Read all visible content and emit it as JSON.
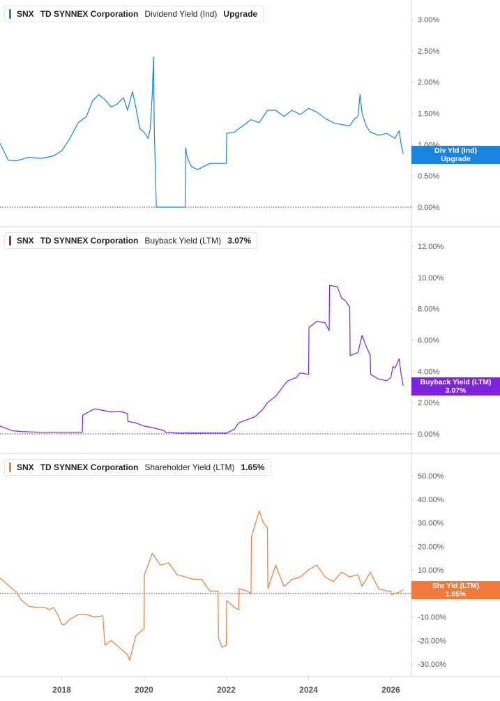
{
  "colors": {
    "dividend": "#1a83e0",
    "buyback": "#7d22e0",
    "shareholder": "#ef7a3c",
    "grid_border": "#d6d6d6",
    "axis_text": "#555555"
  },
  "panels": [
    {
      "ticker": "SNX",
      "company": "TD SYNNEX Corporation",
      "metric": "Dividend Yield (Ind)",
      "value": "Upgrade",
      "tag": {
        "line1": "Div Yld (Ind)",
        "line2": "Upgrade"
      }
    },
    {
      "ticker": "SNX",
      "company": "TD SYNNEX Corporation",
      "metric": "Buyback Yield (LTM)",
      "value": "3.07%",
      "tag": {
        "line1": "Buyback Yield (LTM)",
        "line2": "3.07%"
      }
    },
    {
      "ticker": "SNX",
      "company": "TD SYNNEX Corporation",
      "metric": "Shareholder Yield (LTM)",
      "value": "1.65%",
      "tag": {
        "line1": "Shr Yld (LTM)",
        "line2": "1.65%"
      }
    }
  ],
  "chart_data": [
    {
      "type": "line",
      "series": [
        {
          "name": "Dividend Yield (Ind)",
          "color": "#1a83e0",
          "x": [
            2016.5,
            2016.7,
            2016.9,
            2017.2,
            2017.5,
            2017.8,
            2018.0,
            2018.2,
            2018.4,
            2018.6,
            2018.75,
            2018.9,
            2019.05,
            2019.2,
            2019.35,
            2019.5,
            2019.6,
            2019.72,
            2019.8,
            2019.9,
            2020.0,
            2020.1,
            2020.15,
            2020.2,
            2020.23,
            2020.25,
            2020.3,
            2020.8,
            2021.0,
            2021.01,
            2021.05,
            2021.15,
            2021.3,
            2021.6,
            2022.0,
            2022.01,
            2022.2,
            2022.4,
            2022.6,
            2022.8,
            2023.0,
            2023.2,
            2023.4,
            2023.6,
            2023.8,
            2024.0,
            2024.2,
            2024.4,
            2024.6,
            2024.8,
            2025.0,
            2025.1,
            2025.2,
            2025.25,
            2025.3,
            2025.4,
            2025.5,
            2025.7,
            2025.9,
            2026.1,
            2026.2,
            2026.25,
            2026.3
          ],
          "y": [
            1.02,
            0.75,
            0.74,
            0.8,
            0.78,
            0.82,
            0.9,
            1.1,
            1.35,
            1.45,
            1.7,
            1.8,
            1.72,
            1.6,
            1.65,
            1.75,
            1.55,
            1.85,
            1.6,
            1.25,
            1.2,
            1.1,
            1.25,
            1.8,
            2.4,
            1.2,
            0.0,
            0.0,
            0.0,
            0.95,
            0.8,
            0.65,
            0.6,
            0.7,
            0.7,
            1.18,
            1.2,
            1.3,
            1.4,
            1.35,
            1.55,
            1.55,
            1.45,
            1.55,
            1.48,
            1.58,
            1.52,
            1.42,
            1.35,
            1.32,
            1.3,
            1.4,
            1.45,
            1.8,
            1.5,
            1.3,
            1.2,
            1.15,
            1.18,
            1.1,
            1.22,
            1.0,
            0.85
          ]
        }
      ],
      "ylim": [
        0,
        3
      ],
      "yticks": [
        "0.00%",
        "0.50%",
        "1.00%",
        "1.50%",
        "2.00%",
        "2.50%",
        "3.00%"
      ],
      "xlabel": "",
      "ylabel": ""
    },
    {
      "type": "line",
      "series": [
        {
          "name": "Buyback Yield (LTM)",
          "color": "#7d22e0",
          "x": [
            2016.5,
            2016.8,
            2017.0,
            2017.5,
            2018.0,
            2018.5,
            2018.51,
            2018.8,
            2019.0,
            2019.2,
            2019.4,
            2019.6,
            2019.61,
            2019.8,
            2020.0,
            2020.2,
            2020.5,
            2020.51,
            2020.8,
            2021.0,
            2021.5,
            2022.0,
            2022.2,
            2022.3,
            2022.5,
            2022.7,
            2022.9,
            2023.0,
            2023.2,
            2023.4,
            2023.5,
            2023.7,
            2023.8,
            2024.0,
            2024.01,
            2024.2,
            2024.4,
            2024.5,
            2024.51,
            2024.7,
            2024.8,
            2024.9,
            2025.0,
            2025.01,
            2025.2,
            2025.3,
            2025.4,
            2025.5,
            2025.51,
            2025.7,
            2025.9,
            2026.0,
            2026.05,
            2026.1,
            2026.2,
            2026.25,
            2026.3
          ],
          "y": [
            0.5,
            0.2,
            0.15,
            0.1,
            0.1,
            0.1,
            1.2,
            1.6,
            1.5,
            1.4,
            1.45,
            1.3,
            0.8,
            0.7,
            0.5,
            0.4,
            0.2,
            0.1,
            0.05,
            0.05,
            0.05,
            0.05,
            0.3,
            0.7,
            0.9,
            1.1,
            1.6,
            2.0,
            2.4,
            3.1,
            3.4,
            3.6,
            3.9,
            3.8,
            6.8,
            7.2,
            7.1,
            6.6,
            9.5,
            9.4,
            8.7,
            8.5,
            8.1,
            5.0,
            5.2,
            6.3,
            5.6,
            5.0,
            3.8,
            3.5,
            3.4,
            3.6,
            4.3,
            4.2,
            4.8,
            3.8,
            3.07
          ]
        }
      ],
      "ylim": [
        0,
        12
      ],
      "yticks": [
        "0.00%",
        "2.00%",
        "4.00%",
        "6.00%",
        "8.00%",
        "10.00%",
        "12.00%"
      ],
      "xlabel": "",
      "ylabel": ""
    },
    {
      "type": "line",
      "series": [
        {
          "name": "Shareholder Yield (LTM)",
          "color": "#ef7a3c",
          "x": [
            2016.5,
            2016.7,
            2016.9,
            2017.0,
            2017.2,
            2017.4,
            2017.6,
            2017.7,
            2017.8,
            2017.9,
            2018.0,
            2018.05,
            2018.2,
            2018.4,
            2018.6,
            2018.8,
            2019.0,
            2019.05,
            2019.2,
            2019.4,
            2019.6,
            2019.65,
            2019.8,
            2020.0,
            2020.01,
            2020.2,
            2020.4,
            2020.6,
            2020.8,
            2021.0,
            2021.2,
            2021.4,
            2021.6,
            2021.7,
            2021.8,
            2021.81,
            2021.9,
            2022.0,
            2022.01,
            2022.2,
            2022.3,
            2022.31,
            2022.5,
            2022.6,
            2022.61,
            2022.8,
            2022.9,
            2023.0,
            2023.01,
            2023.2,
            2023.4,
            2023.41,
            2023.6,
            2023.8,
            2024.0,
            2024.2,
            2024.4,
            2024.6,
            2024.8,
            2025.0,
            2025.2,
            2025.3,
            2025.5,
            2025.7,
            2025.9,
            2026.0,
            2026.01,
            2026.2,
            2026.3
          ],
          "y": [
            6.5,
            3.5,
            0.5,
            -2.5,
            -5.5,
            -6.0,
            -6.0,
            -7.0,
            -6.0,
            -9.0,
            -13.0,
            -13.5,
            -11.0,
            -9.0,
            -9.0,
            -10.0,
            -9.5,
            -22.0,
            -20.0,
            -23.0,
            -26.0,
            -28.5,
            -18.0,
            -15.0,
            8.0,
            17.0,
            12.0,
            13.0,
            8.0,
            7.0,
            6.0,
            6.0,
            1.0,
            1.0,
            1.0,
            -19.0,
            -23.0,
            -22.0,
            -3.0,
            -6.0,
            -7.0,
            2.0,
            1.0,
            0.0,
            24.0,
            35.0,
            30.0,
            28.0,
            2.0,
            12.0,
            3.0,
            3.0,
            6.0,
            7.0,
            10.0,
            12.0,
            7.0,
            5.0,
            9.0,
            7.0,
            8.0,
            3.0,
            9.0,
            2.0,
            1.0,
            1.0,
            -0.5,
            0.5,
            1.65
          ]
        }
      ],
      "ylim": [
        -30,
        50
      ],
      "yticks": [
        "-30.00%",
        "-20.00%",
        "-10.00%",
        "0.00%",
        "10.00%",
        "20.00%",
        "30.00%",
        "40.00%",
        "50.00%"
      ],
      "xlabel": "",
      "ylabel": ""
    }
  ],
  "xaxis": {
    "range": [
      2016.5,
      2026.5
    ],
    "ticks": [
      "2018",
      "2020",
      "2022",
      "2024",
      "2026"
    ]
  }
}
